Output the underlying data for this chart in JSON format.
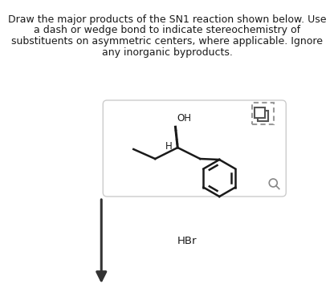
{
  "title_lines": [
    "Draw the major products of the SN1 reaction shown below. Use",
    "a dash or wedge bond to indicate stereochemistry of",
    "substituents on asymmetric centers, where applicable. Ignore",
    "any inorganic byproducts."
  ],
  "title_fontsize": 9.0,
  "background_color": "#ffffff",
  "box_color": "#ffffff",
  "box_edge_color": "#cccccc",
  "reagent_label": "HBr",
  "reagent_fontsize": 9.5,
  "mol_label_H": "H",
  "mol_label_OH": "OH",
  "label_fontsize": 8.5,
  "arrow_color": "#333333",
  "mol_color": "#1a1a1a"
}
